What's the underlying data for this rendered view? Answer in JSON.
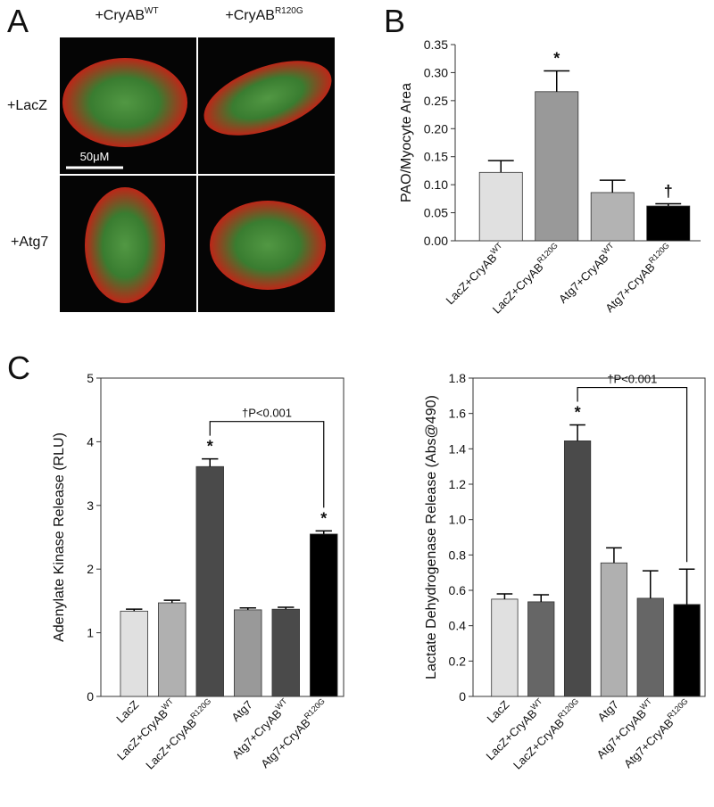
{
  "panel_labels": [
    "A",
    "B",
    "C"
  ],
  "panel_a": {
    "column_labels": [
      {
        "text": "+CryAB",
        "sup": "WT"
      },
      {
        "text": "+CryAB",
        "sup": "R120G"
      }
    ],
    "row_labels": [
      "+LacZ",
      "+Atg7"
    ],
    "scale_bar": "50μM"
  },
  "chart_data": [
    {
      "type": "bar",
      "ylabel": "PAO/Myocyte Area",
      "frame": false,
      "categories": [
        "LacZ+CryAB",
        "LacZ+CryAB",
        "Atg7+CryAB",
        "Atg7+CryAB"
      ],
      "category_superscripts": [
        "WT",
        "R120G",
        "WT",
        "R120G"
      ],
      "values": [
        0.122,
        0.266,
        0.086,
        0.062
      ],
      "errors": [
        0.021,
        0.037,
        0.022,
        0.004
      ],
      "colors": [
        "#e0e0e0",
        "#999999",
        "#b3b3b3",
        "#000000"
      ],
      "bar_labels": [
        null,
        "*",
        null,
        "†"
      ],
      "ylim": [
        0,
        0.35
      ],
      "yticks": [
        {
          "value": 0,
          "label": "0.00"
        },
        0.05,
        {
          "value": 0.1,
          "label": "0.10"
        },
        0.15,
        {
          "value": 0.2,
          "label": "0.20"
        },
        0.25,
        {
          "value": 0.3,
          "label": "0.30"
        },
        0.35
      ]
    },
    {
      "type": "bar",
      "ylabel": "Adenylate Kinase Release (RLU)",
      "frame": true,
      "categories": [
        "LacZ",
        "LacZ+CryAB",
        "LacZ+CryAB",
        "Atg7",
        "Atg7+CryAB",
        "Atg7+CryAB"
      ],
      "category_superscripts": [
        null,
        "WT",
        "R120G",
        null,
        "WT",
        "R120G"
      ],
      "values": [
        1.34,
        1.47,
        3.61,
        1.36,
        1.37,
        2.55
      ],
      "errors": [
        0.03,
        0.04,
        0.12,
        0.03,
        0.03,
        0.05
      ],
      "colors": [
        "#e0e0e0",
        "#b0b0b0",
        "#4a4a4a",
        "#999999",
        "#4a4a4a",
        "#000000"
      ],
      "bar_labels": [
        null,
        null,
        "*",
        null,
        null,
        "*"
      ],
      "bracket": {
        "label": "†P<0.001"
      },
      "ylim": [
        0,
        5
      ],
      "yticks": [
        0,
        1,
        2,
        3,
        4,
        5
      ]
    },
    {
      "type": "bar",
      "ylabel": "Lactate Dehydrogenase Release (Abs@490)",
      "frame": true,
      "categories": [
        "LacZ",
        "LacZ+CryAB",
        "LacZ+CryAB",
        "Atg7",
        "Atg7+CryAB",
        "Atg7+CryAB"
      ],
      "category_superscripts": [
        null,
        "WT",
        "R120G",
        null,
        "WT",
        "R120G"
      ],
      "values": [
        0.55,
        0.535,
        1.445,
        0.755,
        0.555,
        0.52
      ],
      "errors": [
        0.03,
        0.04,
        0.09,
        0.085,
        0.155,
        0.2
      ],
      "colors": [
        "#e0e0e0",
        "#666666",
        "#4a4a4a",
        "#b0b0b0",
        "#666666",
        "#000000"
      ],
      "bar_labels": [
        null,
        null,
        "*",
        null,
        null,
        null
      ],
      "bracket": {
        "label": "†P<0.001"
      },
      "ylim": [
        0,
        1.8
      ],
      "yticks": [
        0,
        0.2,
        0.4,
        0.6,
        0.8,
        {
          "value": 1,
          "label": "1.0"
        },
        1.2,
        1.4,
        1.6,
        1.8
      ]
    }
  ]
}
